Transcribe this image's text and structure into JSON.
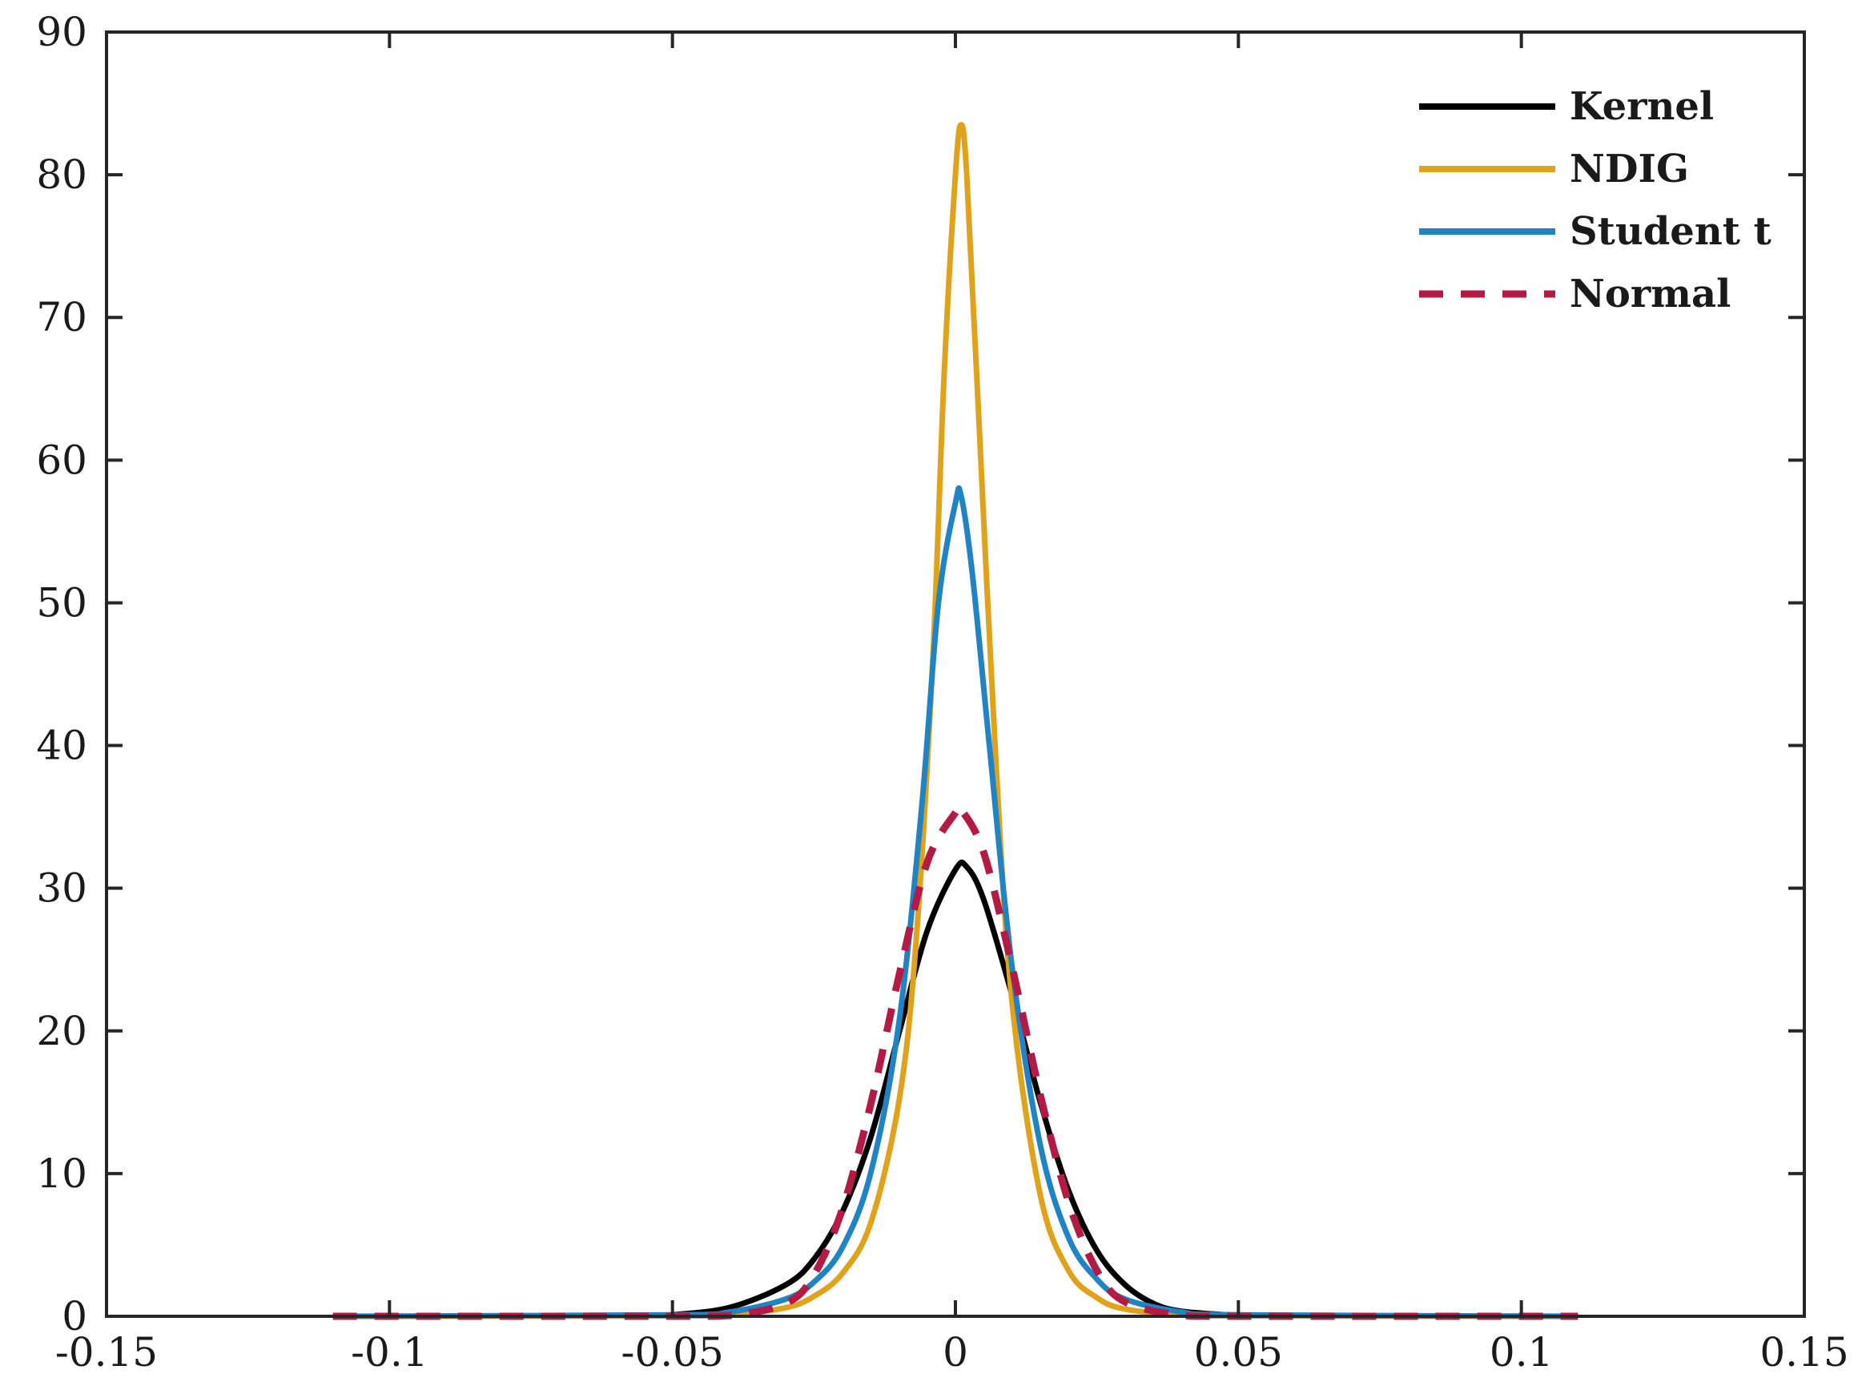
{
  "chart_data": {
    "type": "line",
    "title": "",
    "xlabel": "",
    "ylabel": "",
    "xlim": [
      -0.15,
      0.15
    ],
    "ylim": [
      0,
      90
    ],
    "x_ticks": [
      -0.15,
      -0.1,
      -0.05,
      0,
      0.05,
      0.1,
      0.15
    ],
    "x_tick_labels": [
      "-0.15",
      "-0.1",
      "-0.05",
      "0",
      "0.05",
      "0.1",
      "0.15"
    ],
    "y_ticks": [
      0,
      10,
      20,
      30,
      40,
      50,
      60,
      70,
      80,
      90
    ],
    "y_tick_labels": [
      "0",
      "10",
      "20",
      "30",
      "40",
      "50",
      "60",
      "70",
      "80",
      "90"
    ],
    "grid": false,
    "legend_position": "top-right",
    "series": [
      {
        "name": "Kernel",
        "color": "#000000",
        "dash": "solid",
        "points": [
          [
            -0.05,
            0.1
          ],
          [
            -0.04,
            0.6
          ],
          [
            -0.03,
            2.2
          ],
          [
            -0.025,
            4.0
          ],
          [
            -0.02,
            7.3
          ],
          [
            -0.015,
            12.5
          ],
          [
            -0.01,
            19.8
          ],
          [
            -0.005,
            27.0
          ],
          [
            0,
            31.3
          ],
          [
            0.002,
            31.5
          ],
          [
            0.005,
            29.2
          ],
          [
            0.01,
            22.5
          ],
          [
            0.015,
            15.0
          ],
          [
            0.02,
            8.8
          ],
          [
            0.025,
            4.6
          ],
          [
            0.03,
            2.2
          ],
          [
            0.035,
            0.9
          ],
          [
            0.04,
            0.35
          ],
          [
            0.05,
            0.05
          ]
        ]
      },
      {
        "name": "NDIG",
        "color": "#e0a21a",
        "dash": "solid",
        "points": [
          [
            -0.11,
            0
          ],
          [
            -0.05,
            0.02
          ],
          [
            -0.04,
            0.1
          ],
          [
            -0.03,
            0.6
          ],
          [
            -0.025,
            1.4
          ],
          [
            -0.02,
            3.0
          ],
          [
            -0.015,
            6.5
          ],
          [
            -0.01,
            15.0
          ],
          [
            -0.007,
            26.0
          ],
          [
            -0.004,
            46.0
          ],
          [
            -0.002,
            66.0
          ],
          [
            0,
            80.0
          ],
          [
            0.001,
            83.5
          ],
          [
            0.002,
            80.0
          ],
          [
            0.004,
            64.0
          ],
          [
            0.007,
            40.0
          ],
          [
            0.01,
            22.0
          ],
          [
            0.015,
            8.5
          ],
          [
            0.02,
            3.2
          ],
          [
            0.025,
            1.3
          ],
          [
            0.03,
            0.5
          ],
          [
            0.04,
            0.1
          ],
          [
            0.05,
            0.02
          ],
          [
            0.11,
            0
          ]
        ]
      },
      {
        "name": "Student t",
        "color": "#1f83c4",
        "dash": "solid",
        "points": [
          [
            -0.11,
            0
          ],
          [
            -0.05,
            0.1
          ],
          [
            -0.04,
            0.3
          ],
          [
            -0.03,
            1.2
          ],
          [
            -0.025,
            2.4
          ],
          [
            -0.02,
            4.8
          ],
          [
            -0.015,
            10.0
          ],
          [
            -0.01,
            20.5
          ],
          [
            -0.006,
            35.5
          ],
          [
            -0.003,
            50.0
          ],
          [
            0,
            57.0
          ],
          [
            0.001,
            57.5
          ],
          [
            0.003,
            52.0
          ],
          [
            0.006,
            40.0
          ],
          [
            0.01,
            24.5
          ],
          [
            0.015,
            12.0
          ],
          [
            0.02,
            5.5
          ],
          [
            0.025,
            2.6
          ],
          [
            0.03,
            1.2
          ],
          [
            0.04,
            0.3
          ],
          [
            0.05,
            0.1
          ],
          [
            0.11,
            0
          ]
        ]
      },
      {
        "name": "Normal",
        "color": "#b31b45",
        "dash": "dashed",
        "points": [
          [
            -0.11,
            0
          ],
          [
            -0.05,
            0
          ],
          [
            -0.04,
            0.05
          ],
          [
            -0.03,
            0.9
          ],
          [
            -0.025,
            2.9
          ],
          [
            -0.02,
            7.5
          ],
          [
            -0.015,
            14.8
          ],
          [
            -0.01,
            23.8
          ],
          [
            -0.005,
            31.8
          ],
          [
            0,
            35.3
          ],
          [
            0.001,
            35.5
          ],
          [
            0.005,
            32.5
          ],
          [
            0.01,
            24.5
          ],
          [
            0.015,
            15.5
          ],
          [
            0.02,
            8.0
          ],
          [
            0.025,
            3.2
          ],
          [
            0.03,
            1.0
          ],
          [
            0.04,
            0.05
          ],
          [
            0.05,
            0
          ],
          [
            0.11,
            0
          ]
        ]
      }
    ]
  }
}
